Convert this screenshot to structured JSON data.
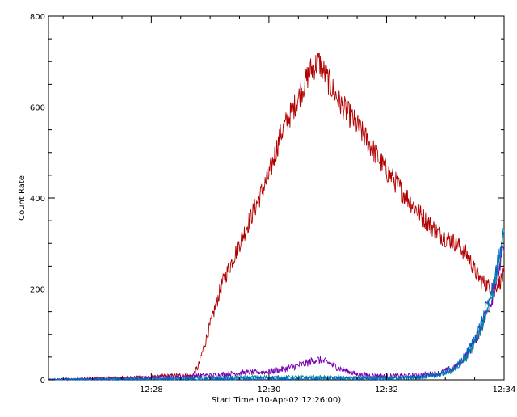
{
  "chart_data": {
    "type": "line",
    "xlabel": "Start Time (10-Apr-02 12:26:00)",
    "ylabel": "Count Rate",
    "x_unit": "minutes after 12:26:00",
    "xlim": [
      0.25,
      8.0
    ],
    "ylim": [
      0,
      800
    ],
    "x_tick_values": [
      2,
      4,
      6,
      8
    ],
    "x_tick_labels": [
      "12:28",
      "12:30",
      "12:32",
      "12:34"
    ],
    "y_tick_values": [
      0,
      200,
      400,
      600,
      800
    ],
    "y_tick_labels": [
      "0",
      "200",
      "400",
      "600",
      "800"
    ],
    "grid": false,
    "legend": "none",
    "series": [
      {
        "color": "#b30000",
        "x": [
          0.25,
          1.0,
          2.0,
          2.5,
          2.7,
          2.8,
          3.0,
          3.2,
          3.5,
          3.8,
          4.0,
          4.2,
          4.5,
          4.7,
          4.85,
          5.0,
          5.2,
          5.5,
          5.8,
          6.0,
          6.3,
          6.6,
          6.9,
          7.2,
          7.4,
          7.5,
          7.6,
          7.75,
          7.9,
          8.0
        ],
        "y": [
          0,
          2,
          6,
          10,
          8,
          30,
          120,
          210,
          300,
          390,
          450,
          540,
          620,
          680,
          700,
          660,
          610,
          560,
          500,
          460,
          410,
          360,
          320,
          300,
          270,
          240,
          220,
          205,
          210,
          230
        ]
      },
      {
        "color": "#7a00b4",
        "x": [
          0.25,
          1.0,
          2.0,
          2.5,
          3.0,
          3.5,
          4.0,
          4.3,
          4.6,
          4.8,
          5.0,
          5.2,
          5.5,
          6.0,
          6.5,
          6.9,
          7.2,
          7.4,
          7.6,
          7.8,
          8.0
        ],
        "y": [
          0,
          2,
          5,
          8,
          10,
          15,
          18,
          25,
          35,
          45,
          38,
          25,
          12,
          8,
          10,
          15,
          30,
          60,
          110,
          180,
          290
        ]
      },
      {
        "color": "#009090",
        "x": [
          0.25,
          2.0,
          3.0,
          4.0,
          5.0,
          6.0,
          6.5,
          6.9,
          7.2,
          7.4,
          7.6,
          7.8,
          8.0
        ],
        "y": [
          0,
          2,
          4,
          6,
          5,
          4,
          5,
          10,
          25,
          55,
          110,
          190,
          310
        ]
      },
      {
        "color": "#0060c8",
        "x": [
          0.25,
          2.0,
          4.0,
          6.0,
          6.5,
          6.9,
          7.2,
          7.4,
          7.6,
          7.8,
          8.0
        ],
        "y": [
          0,
          1,
          3,
          3,
          5,
          12,
          30,
          65,
          120,
          200,
          330
        ]
      }
    ]
  }
}
